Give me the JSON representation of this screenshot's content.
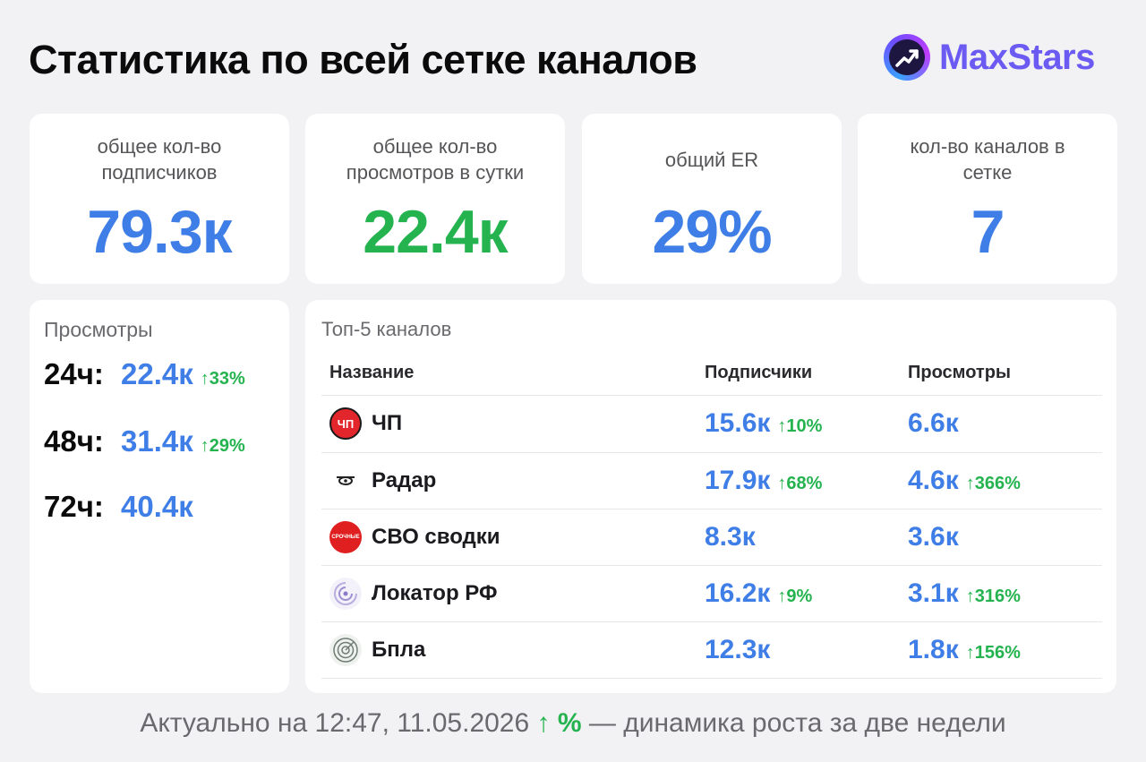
{
  "header": {
    "title": "Статистика по всей сетке каналов",
    "brand": "MaxStars"
  },
  "stats": [
    {
      "label_l1": "общее кол-во",
      "label_l2": "подписчиков",
      "value": "79.3к",
      "color": "#3e7ee6"
    },
    {
      "label_l1": "общее кол-во",
      "label_l2": "просмотров в сутки",
      "value": "22.4к",
      "color": "#24b34f"
    },
    {
      "label_l1": "общий ER",
      "label_l2": "",
      "value": "29%",
      "color": "#3e7ee6"
    },
    {
      "label_l1": "кол-во каналов в",
      "label_l2": "сетке",
      "value": "7",
      "color": "#3e7ee6"
    }
  ],
  "views": {
    "title": "Просмотры",
    "rows": [
      {
        "period": "24ч:",
        "value": "22.4к",
        "growth": "↑33%"
      },
      {
        "period": "48ч:",
        "value": "31.4к",
        "growth": "↑29%"
      },
      {
        "period": "72ч:",
        "value": "40.4к",
        "growth": ""
      }
    ]
  },
  "top": {
    "title": "Топ-5 каналов",
    "columns": {
      "name": "Название",
      "subscribers": "Подписчики",
      "views": "Просмотры"
    },
    "rows": [
      {
        "icon": "chp-logo-icon",
        "name": "ЧП",
        "subs": "15.6к",
        "subs_growth": "↑10%",
        "views": "6.6к",
        "views_growth": ""
      },
      {
        "icon": "radar-drone-icon",
        "name": "Радар",
        "subs": "17.9к",
        "subs_growth": "↑68%",
        "views": "4.6к",
        "views_growth": "↑366%"
      },
      {
        "icon": "svo-news-icon",
        "name": "СВО сводки",
        "subs": "8.3к",
        "subs_growth": "",
        "views": "3.6к",
        "views_growth": ""
      },
      {
        "icon": "locator-icon",
        "name": "Локатор РФ",
        "subs": "16.2к",
        "subs_growth": "↑9%",
        "views": "3.1к",
        "views_growth": "↑316%"
      },
      {
        "icon": "bpla-radar-icon",
        "name": "Бпла",
        "subs": "12.3к",
        "subs_growth": "",
        "views": "1.8к",
        "views_growth": "↑156%"
      }
    ]
  },
  "footer": {
    "prefix": "Актуально на 12:47, 11.05.2026",
    "accent": "↑ %",
    "suffix": "— динамика роста за две недели"
  },
  "icon_texts": {
    "chp": "ЧП",
    "svo": "СРОЧНЫЕ"
  }
}
